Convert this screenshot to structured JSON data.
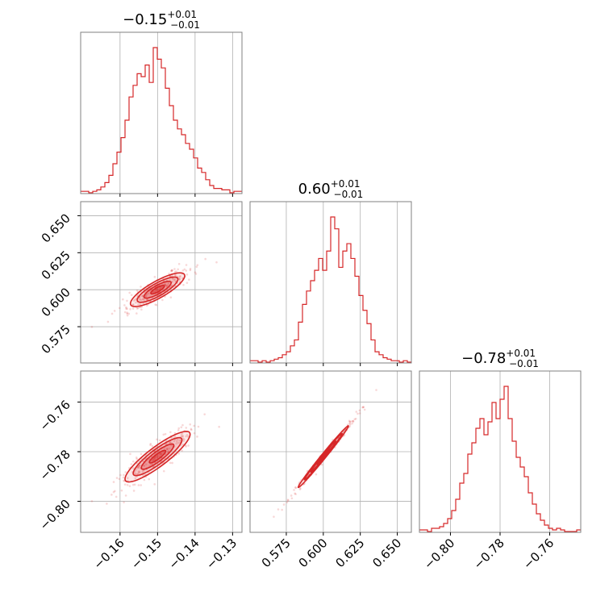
{
  "chart_data": {
    "type": "corner",
    "color": "#d62728",
    "grid": true,
    "parameters": [
      {
        "title_main": "−0.15",
        "title_plus": "+0.01",
        "title_minus": "−0.01",
        "range": [
          -0.1705,
          -0.1275
        ],
        "ticks": [
          -0.16,
          -0.15,
          -0.14,
          -0.13
        ],
        "tick_labels": [
          "−0.16",
          "−0.15",
          "−0.14",
          "−0.13"
        ],
        "hist": [
          1,
          1,
          0,
          1,
          2,
          4,
          7,
          12,
          20,
          28,
          38,
          50,
          66,
          74,
          82,
          80,
          88,
          76,
          100,
          92,
          86,
          72,
          60,
          50,
          44,
          40,
          34,
          30,
          24,
          17,
          14,
          9,
          5,
          3,
          3,
          2,
          2,
          0,
          1,
          1
        ]
      },
      {
        "title_main": "0.60",
        "title_plus": "+0.01",
        "title_minus": "−0.01",
        "range": [
          0.5505,
          0.6595
        ],
        "ticks": [
          0.575,
          0.6,
          0.625,
          0.65
        ],
        "tick_labels": [
          "0.575",
          "0.600",
          "0.625",
          "0.650"
        ],
        "hist": [
          1,
          1,
          0,
          1,
          0,
          1,
          2,
          3,
          5,
          7,
          11,
          15,
          27,
          39,
          48,
          55,
          62,
          70,
          62,
          75,
          98,
          90,
          64,
          75,
          80,
          70,
          58,
          45,
          35,
          26,
          15,
          7,
          5,
          3,
          2,
          1,
          1,
          0,
          1,
          0
        ]
      },
      {
        "title_main": "−0.78",
        "title_plus": "+0.01",
        "title_minus": "−0.01",
        "range": [
          -0.8125,
          -0.7475
        ],
        "ticks": [
          -0.8,
          -0.78,
          -0.76
        ],
        "tick_labels": [
          "−0.80",
          "−0.78",
          "−0.76"
        ],
        "hist": [
          1,
          1,
          0,
          2,
          2,
          3,
          5,
          8,
          13,
          20,
          30,
          36,
          48,
          55,
          64,
          70,
          60,
          68,
          80,
          70,
          82,
          90,
          70,
          56,
          46,
          40,
          34,
          24,
          17,
          11,
          7,
          4,
          2,
          1,
          2,
          1,
          0,
          0,
          0,
          1
        ]
      }
    ],
    "pairs": [
      {
        "x": 0,
        "y": 1,
        "slope": 1.72,
        "y_at_x_mean": 0.6,
        "x_mean": -0.15,
        "along_sd": 0.0065,
        "across_sd": 0.0018
      },
      {
        "x": 0,
        "y": 2,
        "slope": 1.2,
        "y_at_x_mean": -0.782,
        "x_mean": -0.15,
        "along_sd": 0.0065,
        "across_sd": 0.0016
      },
      {
        "x": 1,
        "y": 2,
        "slope": 0.73,
        "y_at_x_mean": -0.782,
        "x_mean": 0.6,
        "along_sd": 0.0105,
        "across_sd": 0.0006
      }
    ]
  }
}
